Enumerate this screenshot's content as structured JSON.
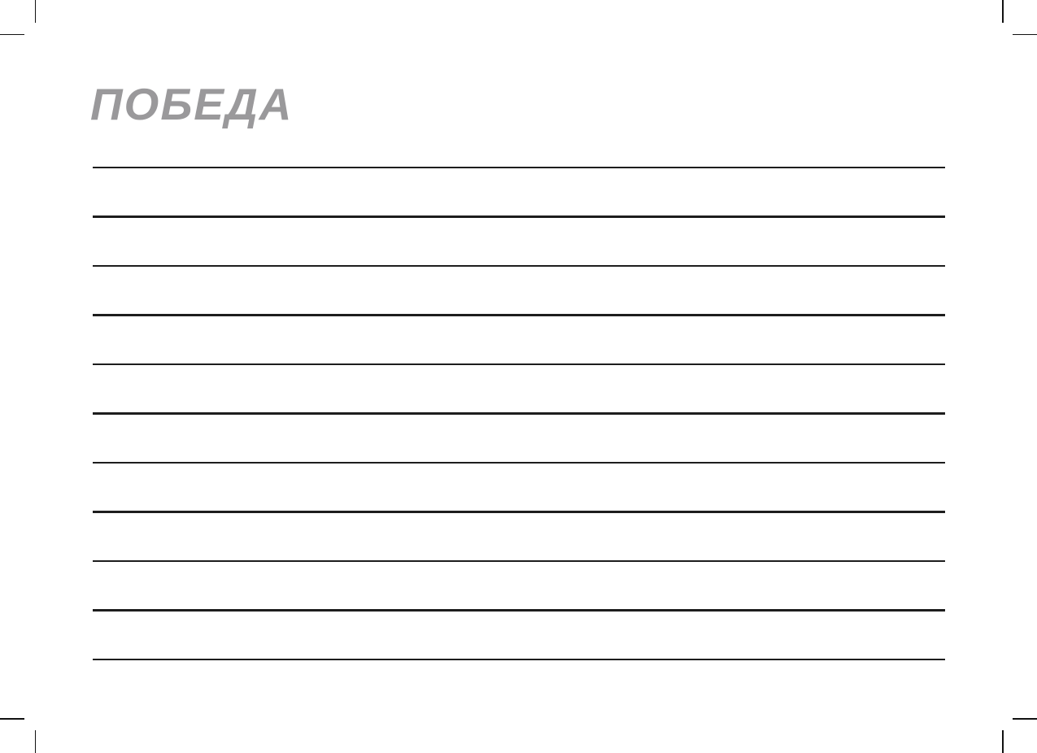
{
  "page": {
    "background_color": "#ffffff"
  },
  "brand": {
    "logo_text": "ПОБЕДА",
    "logo_color": "#9a999b"
  },
  "notes": {
    "line_count": 11,
    "line_color": "#1d1d1d"
  },
  "print_marks": {
    "color": "#111111",
    "corners": [
      "top-left",
      "top-right",
      "bottom-left",
      "bottom-right"
    ]
  }
}
